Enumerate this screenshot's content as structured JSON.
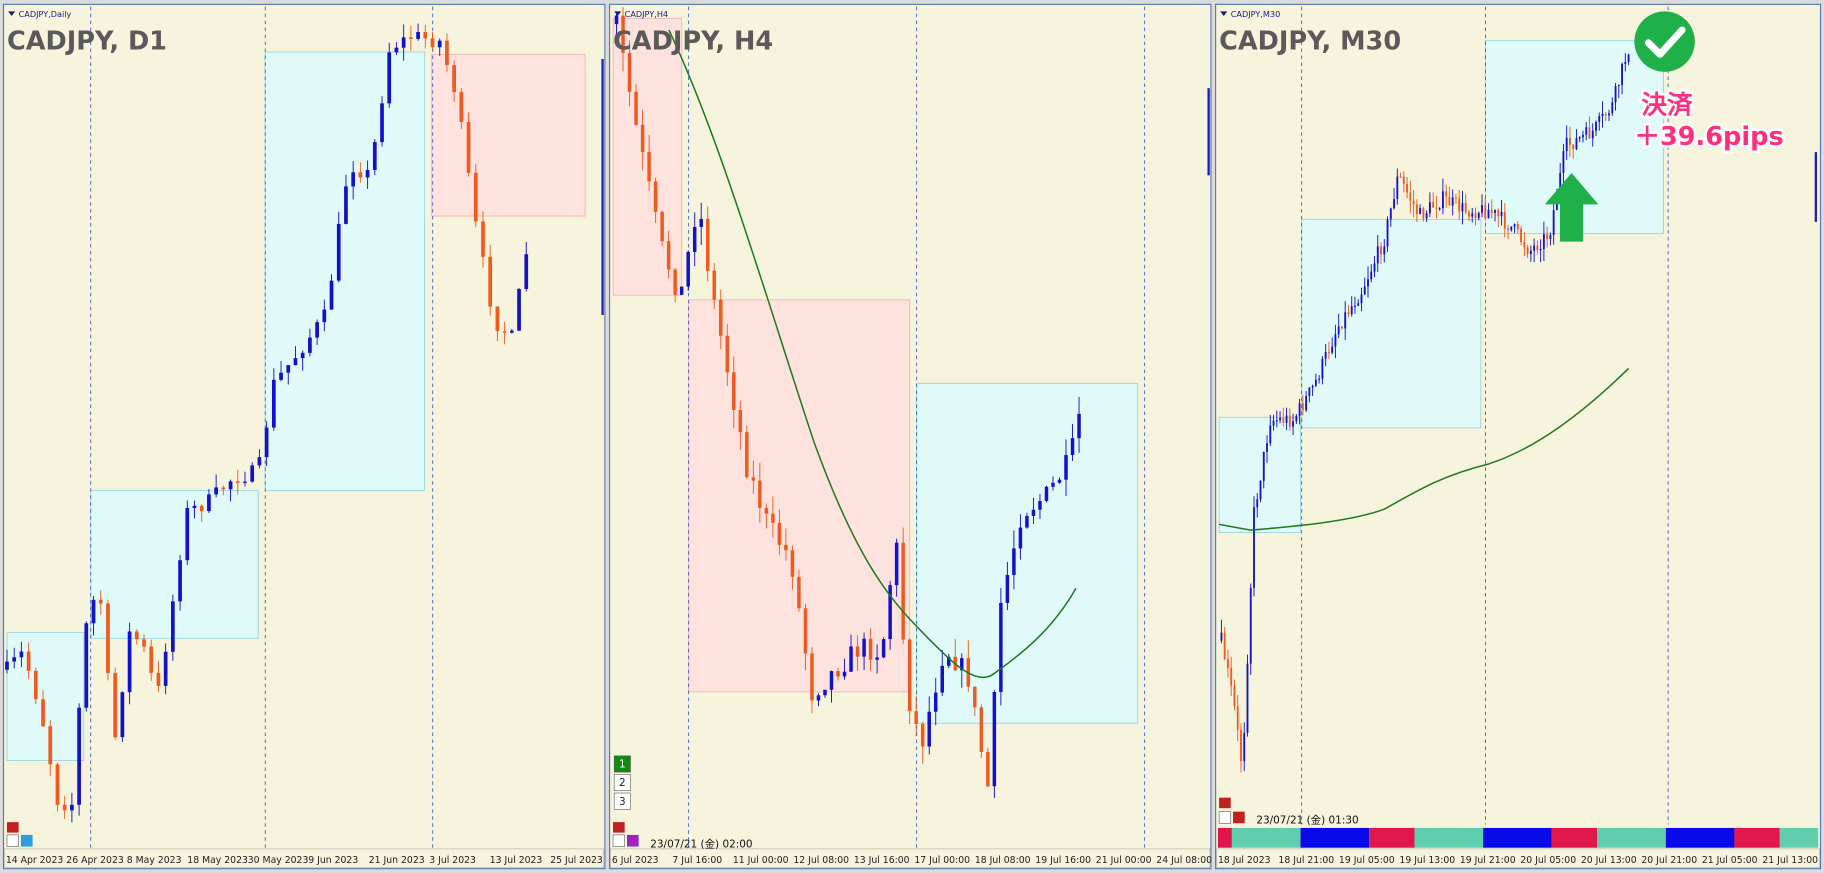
{
  "panels": [
    {
      "symbol_label": "CADJPY,Daily",
      "title": "CADJPY, D1",
      "time_labels": [
        "14 Apr 2023",
        "26 Apr 2023",
        "8 May 2023",
        "18 May 2023",
        "30 May 2023",
        "9 Jun 2023",
        "21 Jun 2023",
        "3 Jul 2023",
        "13 Jul 2023",
        "25 Jul 2023"
      ]
    },
    {
      "symbol_label": "CADJPY,H4",
      "title": "CADJPY, H4",
      "time_labels": [
        "6 Jul 2023",
        "7 Jul 16:00",
        "11 Jul 00:00",
        "12 Jul 08:00",
        "13 Jul 16:00",
        "17 Jul 00:00",
        "18 Jul 08:00",
        "19 Jul 16:00",
        "21 Jul 00:00",
        "24 Jul 08:00"
      ],
      "buttons": [
        "1",
        "2",
        "3"
      ],
      "timestamp": "23/07/21 (金) 02:00"
    },
    {
      "symbol_label": "CADJPY,M30",
      "title": "CADJPY, M30",
      "time_labels": [
        "18 Jul 2023",
        "18 Jul 21:00",
        "19 Jul 05:00",
        "19 Jul 13:00",
        "19 Jul 21:00",
        "20 Jul 05:00",
        "20 Jul 13:00",
        "20 Jul 21:00",
        "21 Jul 05:00",
        "21 Jul 13:00"
      ],
      "timestamp": "23/07/21 (金) 01:30"
    }
  ],
  "annotation": {
    "action": "決済",
    "result": "＋39.6pips"
  }
}
